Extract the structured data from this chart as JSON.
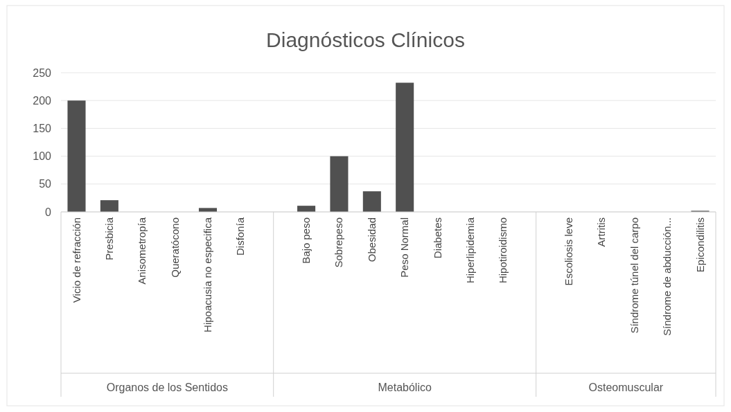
{
  "chart_data": {
    "type": "bar",
    "title": "Diagnósticos Clínicos",
    "categories": [
      "Vicio de refracción",
      "Presbicia",
      "Anisometropía",
      "Queratócono",
      "Hipoacusia no especifica",
      "Disfonía",
      null,
      "Bajo peso",
      "Sobrepeso",
      "Obesidad",
      "Peso Normal",
      "Diabetes",
      "Hiperlipidemia",
      "Hipotiroidismo",
      null,
      "Escoliosis leve",
      "Artritis",
      "Síndrome  túnel del carpo",
      "Síndrome de abducción...",
      "Epicondilitis"
    ],
    "values": [
      200,
      21,
      0,
      0,
      7,
      0,
      null,
      11,
      100,
      37,
      232,
      0,
      0,
      0,
      null,
      0,
      0,
      0,
      0,
      2
    ],
    "color": "#505050",
    "ylim": [
      0,
      250
    ],
    "yticks": [
      0,
      50,
      100,
      150,
      200,
      250
    ],
    "grid": "y",
    "annotations": [
      "Organos de los Sentidos",
      "Metabólico",
      "Osteomuscular"
    ]
  }
}
